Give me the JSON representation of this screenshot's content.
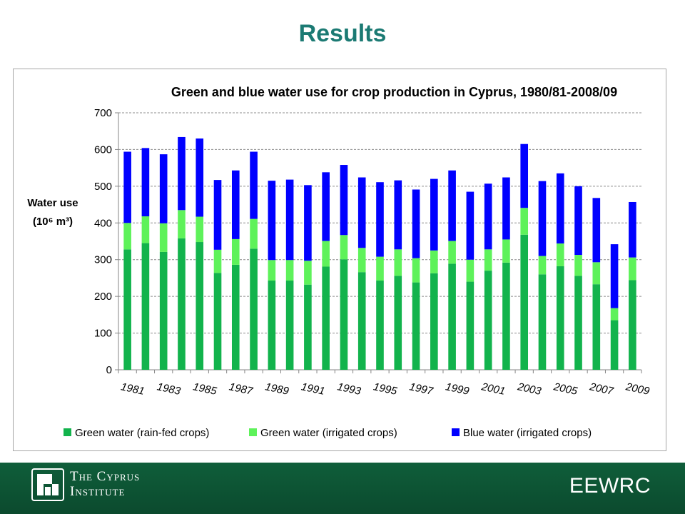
{
  "slide": {
    "title": "Results",
    "org_name_line1": "The Cyprus",
    "org_name_line2": "Institute",
    "brand": "EEWRC"
  },
  "colors": {
    "title": "#1b7a73",
    "footer": "#0f5e3a",
    "green_rainfed": "#12b34c",
    "green_irrigated": "#5ef25a",
    "blue_irrigated": "#0000ff"
  },
  "chart_data": {
    "type": "bar",
    "stacked": true,
    "title": "Green and blue water use for crop production in Cyprus, 1980/81-2008/09",
    "ylabel_line1": "Water use",
    "ylabel_line2": "(10⁶ m³)",
    "ylim": [
      0,
      700
    ],
    "yticks": [
      0,
      100,
      200,
      300,
      400,
      500,
      600,
      700
    ],
    "grid": true,
    "legend_position": "bottom",
    "categories": [
      "1981",
      "1982",
      "1983",
      "1984",
      "1985",
      "1986",
      "1987",
      "1988",
      "1989",
      "1990",
      "1991",
      "1992",
      "1993",
      "1994",
      "1995",
      "1996",
      "1997",
      "1998",
      "1999",
      "2000",
      "2001",
      "2002",
      "2003",
      "2004",
      "2005",
      "2006",
      "2007",
      "2008",
      "2009"
    ],
    "tick_labels": [
      "1981",
      "1983",
      "1985",
      "1987",
      "1989",
      "1991",
      "1993",
      "1995",
      "1997",
      "1999",
      "2001",
      "2003",
      "2005",
      "2007",
      "2009"
    ],
    "series": [
      {
        "name": "Green water (rain-fed crops)",
        "color": "#12b34c",
        "values": [
          328,
          345,
          321,
          358,
          348,
          264,
          286,
          330,
          243,
          243,
          232,
          281,
          301,
          266,
          243,
          256,
          238,
          263,
          289,
          240,
          270,
          292,
          368,
          260,
          282,
          256,
          233,
          135,
          244
        ]
      },
      {
        "name": "Green water (irrigated crops)",
        "color": "#5ef25a",
        "values": [
          72,
          73,
          78,
          77,
          69,
          63,
          70,
          81,
          56,
          56,
          65,
          70,
          66,
          66,
          65,
          72,
          66,
          62,
          62,
          60,
          58,
          63,
          73,
          50,
          62,
          57,
          60,
          33,
          62
        ]
      },
      {
        "name": "Blue water (irrigated crops)",
        "color": "#0000ff",
        "values": [
          194,
          186,
          188,
          199,
          213,
          190,
          187,
          183,
          216,
          219,
          206,
          187,
          191,
          192,
          203,
          188,
          187,
          195,
          192,
          185,
          179,
          169,
          174,
          204,
          191,
          187,
          175,
          174,
          151
        ]
      }
    ]
  }
}
